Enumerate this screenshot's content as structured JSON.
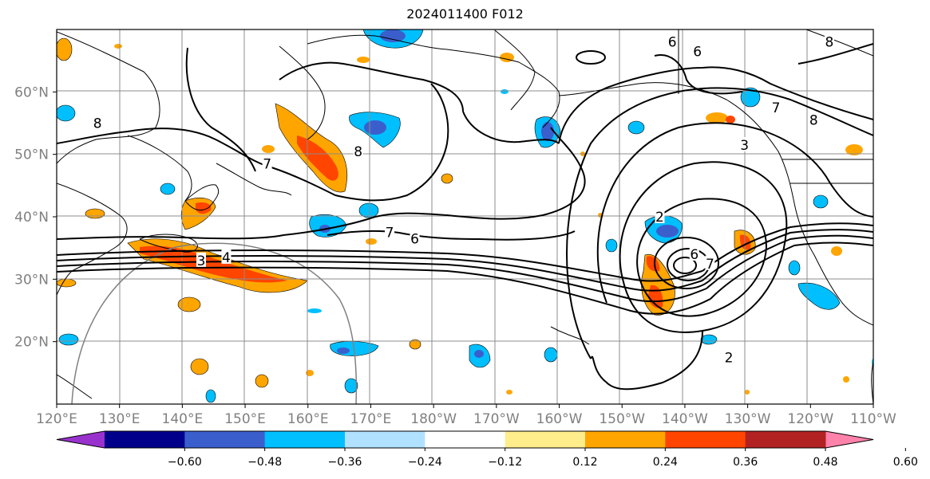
{
  "title": "2024011400 F012",
  "x_ticks": [
    "120°E",
    "130°E",
    "140°E",
    "150°E",
    "160°E",
    "170°E",
    "180°W",
    "170°W",
    "160°W",
    "150°W",
    "140°W",
    "130°W",
    "120°W",
    "110°W"
  ],
  "y_ticks": [
    "20°N",
    "30°N",
    "40°N",
    "50°N",
    "60°N"
  ],
  "colorbar": {
    "ticks": [
      "−0.60",
      "−0.48",
      "−0.36",
      "−0.24",
      "−0.12",
      "0.12",
      "0.24",
      "0.36",
      "0.48",
      "0.60"
    ],
    "colors": [
      "#9932cc",
      "#00008b",
      "#3a5fcd",
      "#00bfff",
      "#b0e2ff",
      "#ffffff",
      "#ffec8b",
      "#ffa500",
      "#ff4500",
      "#b22222",
      "#ff82ab"
    ]
  },
  "contour_labels": [
    {
      "text": "8",
      "lon": 168,
      "lat": 50.5
    },
    {
      "text": "7",
      "lon": 153.5,
      "lat": 48.5
    },
    {
      "text": "8",
      "lon": 126.5,
      "lat": 55
    },
    {
      "text": "6",
      "lon": 218,
      "lat": 68
    },
    {
      "text": "6",
      "lon": 222,
      "lat": 66.5
    },
    {
      "text": "7",
      "lon": 173,
      "lat": 37.5
    },
    {
      "text": "6",
      "lon": 177,
      "lat": 36.5
    },
    {
      "text": "3",
      "lon": 143,
      "lat": 33
    },
    {
      "text": "4",
      "lon": 147,
      "lat": 33.5
    },
    {
      "text": "3",
      "lon": 229.5,
      "lat": 51.5
    },
    {
      "text": "2",
      "lon": 216,
      "lat": 40
    },
    {
      "text": "6",
      "lon": 221.5,
      "lat": 34
    },
    {
      "text": "7",
      "lon": 224,
      "lat": 32.5
    },
    {
      "text": "2",
      "lon": 227,
      "lat": 17.5
    },
    {
      "text": "7",
      "lon": 234.5,
      "lat": 57.5
    },
    {
      "text": "8",
      "lon": 240.5,
      "lat": 55.5
    },
    {
      "text": "8",
      "lon": 243,
      "lat": 68
    }
  ]
}
